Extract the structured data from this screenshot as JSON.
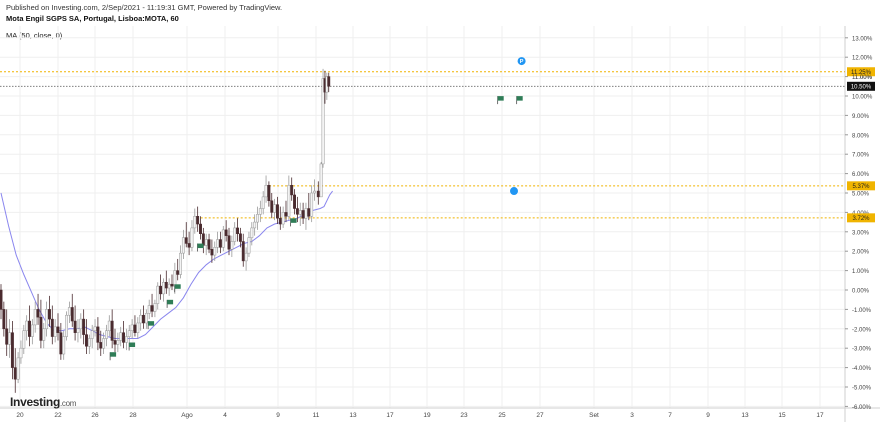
{
  "header": {
    "published": "Published on Investing.com, 2/Sep/2021 - 11:19:31 GMT, Powered by TradingView.",
    "title": "Mota Engil SGPS SA, Portugal, Lisboa:MOTA, 60",
    "indicator": "MA (50, close, 0)"
  },
  "logo": {
    "brand": "Investing",
    "suffix": ".com"
  },
  "colors": {
    "up": "#f3f3f3",
    "down": "#4a2b2f",
    "ma": "#8a86ee",
    "level": "#f0b400",
    "current": "#111111",
    "flag": "#2f7d57",
    "badge": "#2196f3",
    "grid": "#efefef"
  },
  "chart_data": {
    "type": "candlestick",
    "x_ticks": [
      "20",
      "22",
      "26",
      "28",
      "Ago",
      "4",
      "9",
      "11",
      "13",
      "17",
      "19",
      "23",
      "25",
      "27",
      "Set",
      "3",
      "7",
      "9",
      "13",
      "15",
      "17"
    ],
    "y_ticks": [
      "13.00%",
      "12.00%",
      "11.00%",
      "10.00%",
      "9.00%",
      "8.00%",
      "7.00%",
      "6.00%",
      "5.00%",
      "4.00%",
      "3.00%",
      "2.00%",
      "1.00%",
      "0.00%",
      "-1.00%",
      "-2.00%",
      "-3.00%",
      "-4.00%",
      "-5.00%",
      "-6.00%"
    ],
    "ylim": [
      -6,
      13
    ],
    "levels": [
      {
        "label": "11.25%",
        "value": 11.25,
        "style": "dotted"
      },
      {
        "label": "5.37%",
        "value": 5.37,
        "style": "dotted"
      },
      {
        "label": "3.72%",
        "value": 3.72,
        "style": "dotted"
      },
      {
        "label": "10.50%",
        "value": 10.5,
        "style": "current"
      }
    ],
    "partial_tick_label": "11.00%",
    "flag_days": [
      4.9,
      5.9,
      6.9,
      7.9,
      8.3,
      9.5,
      14.4,
      25.3,
      26.3
    ],
    "badges": [
      {
        "letter": "P",
        "day": 26.4,
        "value": 11.8
      },
      {
        "letter": "",
        "day": 26.0,
        "value": 5.1
      }
    ],
    "candles": [
      {
        "d": -1.0,
        "o": 0.0,
        "h": 0.3,
        "l": -1.5,
        "c": -1.0
      },
      {
        "d": -0.85,
        "o": -1.0,
        "h": -0.6,
        "l": -2.4,
        "c": -2.0
      },
      {
        "d": -0.7,
        "o": -2.0,
        "h": -1.0,
        "l": -3.4,
        "c": -2.8
      },
      {
        "d": -0.55,
        "o": -2.8,
        "h": -1.5,
        "l": -3.5,
        "c": -2.2
      },
      {
        "d": -0.4,
        "o": -2.2,
        "h": -1.6,
        "l": -4.6,
        "c": -4.0
      },
      {
        "d": -0.25,
        "o": -4.0,
        "h": -3.0,
        "l": -5.3,
        "c": -4.6
      },
      {
        "d": -0.1,
        "o": -4.6,
        "h": -3.2,
        "l": -4.8,
        "c": -3.5
      },
      {
        "d": 0.05,
        "o": -3.5,
        "h": -2.6,
        "l": -3.8,
        "c": -3.0
      },
      {
        "d": 0.2,
        "o": -3.0,
        "h": -1.8,
        "l": -3.3,
        "c": -2.1
      },
      {
        "d": 0.35,
        "o": -2.1,
        "h": -1.3,
        "l": -2.6,
        "c": -1.6
      },
      {
        "d": 0.5,
        "o": -1.6,
        "h": -0.8,
        "l": -2.9,
        "c": -2.4
      },
      {
        "d": 0.65,
        "o": -2.4,
        "h": -1.5,
        "l": -2.8,
        "c": -1.8
      },
      {
        "d": 0.8,
        "o": -1.8,
        "h": -0.6,
        "l": -2.2,
        "c": -1.0
      },
      {
        "d": 0.95,
        "o": -1.0,
        "h": -0.2,
        "l": -1.8,
        "c": -1.4
      },
      {
        "d": 1.1,
        "o": -1.4,
        "h": -0.5,
        "l": -3.0,
        "c": -2.6
      },
      {
        "d": 1.25,
        "o": -2.6,
        "h": -1.7,
        "l": -3.0,
        "c": -2.0
      },
      {
        "d": 1.4,
        "o": -2.0,
        "h": -0.6,
        "l": -2.4,
        "c": -1.0
      },
      {
        "d": 1.55,
        "o": -1.0,
        "h": -0.3,
        "l": -1.9,
        "c": -1.5
      },
      {
        "d": 1.7,
        "o": -1.5,
        "h": -0.8,
        "l": -2.8,
        "c": -2.4
      },
      {
        "d": 1.85,
        "o": -2.4,
        "h": -1.5,
        "l": -2.7,
        "c": -1.9
      },
      {
        "d": 2.0,
        "o": -1.9,
        "h": -1.2,
        "l": -2.6,
        "c": -2.2
      },
      {
        "d": 2.15,
        "o": -2.2,
        "h": -1.7,
        "l": -3.6,
        "c": -3.3
      },
      {
        "d": 2.3,
        "o": -3.3,
        "h": -2.1,
        "l": -3.6,
        "c": -2.4
      },
      {
        "d": 2.45,
        "o": -2.4,
        "h": -1.1,
        "l": -2.6,
        "c": -1.3
      },
      {
        "d": 2.6,
        "o": -1.3,
        "h": -0.6,
        "l": -1.7,
        "c": -0.9
      },
      {
        "d": 2.75,
        "o": -0.9,
        "h": -0.2,
        "l": -1.9,
        "c": -1.6
      },
      {
        "d": 2.9,
        "o": -1.6,
        "h": -0.8,
        "l": -2.6,
        "c": -2.2
      },
      {
        "d": 3.05,
        "o": -2.2,
        "h": -1.5,
        "l": -2.7,
        "c": -2.0
      },
      {
        "d": 3.2,
        "o": -2.0,
        "h": -1.2,
        "l": -2.5,
        "c": -1.5
      },
      {
        "d": 3.35,
        "o": -1.5,
        "h": -1.0,
        "l": -2.8,
        "c": -2.3
      },
      {
        "d": 3.5,
        "o": -2.3,
        "h": -1.5,
        "l": -3.3,
        "c": -2.9
      },
      {
        "d": 3.65,
        "o": -2.9,
        "h": -2.3,
        "l": -3.3,
        "c": -2.5
      },
      {
        "d": 3.8,
        "o": -2.5,
        "h": -1.8,
        "l": -3.0,
        "c": -2.1
      },
      {
        "d": 3.95,
        "o": -2.1,
        "h": -1.5,
        "l": -2.4,
        "c": -1.9
      },
      {
        "d": 4.1,
        "o": -1.9,
        "h": -1.4,
        "l": -3.1,
        "c": -2.7
      },
      {
        "d": 4.25,
        "o": -2.7,
        "h": -2.1,
        "l": -3.4,
        "c": -3.0
      },
      {
        "d": 4.4,
        "o": -3.0,
        "h": -2.2,
        "l": -3.3,
        "c": -2.5
      },
      {
        "d": 4.55,
        "o": -2.5,
        "h": -1.8,
        "l": -2.9,
        "c": -2.1
      },
      {
        "d": 4.7,
        "o": -2.1,
        "h": -1.3,
        "l": -2.4,
        "c": -1.6
      },
      {
        "d": 4.85,
        "o": -1.6,
        "h": -1.0,
        "l": -3.0,
        "c": -2.6
      },
      {
        "d": 5.0,
        "o": -2.6,
        "h": -2.0,
        "l": -3.2,
        "c": -2.8
      },
      {
        "d": 5.15,
        "o": -2.8,
        "h": -2.2,
        "l": -3.2,
        "c": -2.6
      },
      {
        "d": 5.3,
        "o": -2.6,
        "h": -1.9,
        "l": -2.9,
        "c": -2.2
      },
      {
        "d": 5.45,
        "o": -2.2,
        "h": -1.6,
        "l": -3.0,
        "c": -2.7
      },
      {
        "d": 5.6,
        "o": -2.7,
        "h": -2.0,
        "l": -3.1,
        "c": -2.4
      },
      {
        "d": 5.75,
        "o": -2.4,
        "h": -1.8,
        "l": -2.7,
        "c": -2.1
      },
      {
        "d": 5.9,
        "o": -2.1,
        "h": -1.5,
        "l": -2.5,
        "c": -1.8
      },
      {
        "d": 6.05,
        "o": -1.8,
        "h": -1.3,
        "l": -2.4,
        "c": -2.2
      },
      {
        "d": 6.2,
        "o": -2.2,
        "h": -1.4,
        "l": -2.5,
        "c": -1.7
      },
      {
        "d": 6.35,
        "o": -1.7,
        "h": -1.0,
        "l": -2.1,
        "c": -1.3
      },
      {
        "d": 6.5,
        "o": -1.3,
        "h": -0.8,
        "l": -2.0,
        "c": -1.7
      },
      {
        "d": 6.65,
        "o": -1.7,
        "h": -1.0,
        "l": -2.0,
        "c": -1.2
      },
      {
        "d": 6.8,
        "o": -1.2,
        "h": -0.5,
        "l": -1.5,
        "c": -0.8
      },
      {
        "d": 6.95,
        "o": -0.8,
        "h": -0.2,
        "l": -1.4,
        "c": -1.1
      },
      {
        "d": 7.1,
        "o": -1.1,
        "h": -0.5,
        "l": -1.4,
        "c": -0.7
      },
      {
        "d": 7.25,
        "o": -0.7,
        "h": 0.4,
        "l": -1.0,
        "c": 0.2
      },
      {
        "d": 7.4,
        "o": 0.2,
        "h": 0.8,
        "l": -0.5,
        "c": -0.2
      },
      {
        "d": 7.55,
        "o": -0.2,
        "h": 0.6,
        "l": -0.6,
        "c": 0.4
      },
      {
        "d": 7.7,
        "o": 0.4,
        "h": 1.0,
        "l": -0.2,
        "c": 0.1
      },
      {
        "d": 7.85,
        "o": 0.1,
        "h": 0.6,
        "l": -0.3,
        "c": 0.3
      },
      {
        "d": 8.0,
        "o": 0.3,
        "h": 0.8,
        "l": 0.0,
        "c": 0.2
      },
      {
        "d": 8.15,
        "o": 0.2,
        "h": 1.4,
        "l": -0.2,
        "c": 1.0
      },
      {
        "d": 8.3,
        "o": 1.0,
        "h": 1.6,
        "l": 0.5,
        "c": 0.8
      },
      {
        "d": 8.45,
        "o": 0.8,
        "h": 2.3,
        "l": 0.6,
        "c": 1.9
      },
      {
        "d": 8.6,
        "o": 1.9,
        "h": 3.1,
        "l": 1.6,
        "c": 2.7
      },
      {
        "d": 8.75,
        "o": 2.7,
        "h": 3.5,
        "l": 2.2,
        "c": 2.4
      },
      {
        "d": 8.9,
        "o": 2.4,
        "h": 3.0,
        "l": 1.8,
        "c": 2.2
      },
      {
        "d": 9.05,
        "o": 2.2,
        "h": 3.6,
        "l": 2.0,
        "c": 3.2
      },
      {
        "d": 9.2,
        "o": 3.2,
        "h": 4.2,
        "l": 2.9,
        "c": 3.8
      },
      {
        "d": 9.35,
        "o": 3.8,
        "h": 4.3,
        "l": 3.0,
        "c": 3.4
      },
      {
        "d": 9.5,
        "o": 3.4,
        "h": 3.8,
        "l": 2.6,
        "c": 2.9
      },
      {
        "d": 9.65,
        "o": 2.9,
        "h": 3.2,
        "l": 1.9,
        "c": 2.3
      },
      {
        "d": 9.8,
        "o": 2.3,
        "h": 2.9,
        "l": 1.8,
        "c": 2.6
      },
      {
        "d": 9.95,
        "o": 2.6,
        "h": 2.9,
        "l": 1.9,
        "c": 2.1
      },
      {
        "d": 10.1,
        "o": 2.1,
        "h": 2.6,
        "l": 1.4,
        "c": 1.8
      },
      {
        "d": 10.25,
        "o": 1.8,
        "h": 2.5,
        "l": 1.5,
        "c": 2.2
      },
      {
        "d": 10.4,
        "o": 2.2,
        "h": 3.0,
        "l": 1.9,
        "c": 2.6
      },
      {
        "d": 10.55,
        "o": 2.6,
        "h": 3.0,
        "l": 1.9,
        "c": 2.2
      },
      {
        "d": 10.7,
        "o": 2.2,
        "h": 3.3,
        "l": 2.0,
        "c": 3.1
      },
      {
        "d": 10.85,
        "o": 3.1,
        "h": 3.6,
        "l": 2.5,
        "c": 2.8
      },
      {
        "d": 11.0,
        "o": 2.8,
        "h": 3.2,
        "l": 1.8,
        "c": 2.1
      },
      {
        "d": 11.15,
        "o": 2.1,
        "h": 2.8,
        "l": 1.7,
        "c": 2.5
      },
      {
        "d": 11.3,
        "o": 2.5,
        "h": 3.5,
        "l": 2.3,
        "c": 3.2
      },
      {
        "d": 11.45,
        "o": 3.2,
        "h": 3.7,
        "l": 2.5,
        "c": 2.9
      },
      {
        "d": 11.6,
        "o": 2.9,
        "h": 3.2,
        "l": 2.2,
        "c": 2.5
      },
      {
        "d": 11.75,
        "o": 2.5,
        "h": 2.9,
        "l": 1.2,
        "c": 1.5
      },
      {
        "d": 11.9,
        "o": 1.5,
        "h": 2.2,
        "l": 1.0,
        "c": 1.9
      },
      {
        "d": 12.05,
        "o": 1.9,
        "h": 3.0,
        "l": 1.7,
        "c": 2.7
      },
      {
        "d": 12.2,
        "o": 2.7,
        "h": 3.5,
        "l": 2.3,
        "c": 3.2
      },
      {
        "d": 12.35,
        "o": 3.2,
        "h": 3.9,
        "l": 2.8,
        "c": 3.5
      },
      {
        "d": 12.5,
        "o": 3.5,
        "h": 4.3,
        "l": 3.1,
        "c": 3.9
      },
      {
        "d": 12.65,
        "o": 3.9,
        "h": 4.6,
        "l": 3.5,
        "c": 4.2
      },
      {
        "d": 12.8,
        "o": 4.2,
        "h": 5.1,
        "l": 3.9,
        "c": 4.8
      },
      {
        "d": 12.95,
        "o": 4.8,
        "h": 5.9,
        "l": 4.5,
        "c": 5.4
      },
      {
        "d": 13.1,
        "o": 5.4,
        "h": 5.6,
        "l": 4.3,
        "c": 4.6
      },
      {
        "d": 13.25,
        "o": 4.6,
        "h": 5.0,
        "l": 3.7,
        "c": 4.0
      },
      {
        "d": 13.4,
        "o": 4.0,
        "h": 4.7,
        "l": 3.6,
        "c": 4.4
      },
      {
        "d": 13.55,
        "o": 4.4,
        "h": 4.8,
        "l": 3.4,
        "c": 3.7
      },
      {
        "d": 13.7,
        "o": 3.7,
        "h": 4.3,
        "l": 3.1,
        "c": 3.4
      },
      {
        "d": 13.85,
        "o": 3.4,
        "h": 4.3,
        "l": 3.2,
        "c": 4.0
      },
      {
        "d": 14.0,
        "o": 4.0,
        "h": 4.6,
        "l": 3.5,
        "c": 3.8
      },
      {
        "d": 14.15,
        "o": 3.8,
        "h": 5.9,
        "l": 3.6,
        "c": 5.4
      },
      {
        "d": 14.3,
        "o": 5.4,
        "h": 5.8,
        "l": 4.6,
        "c": 4.9
      },
      {
        "d": 14.45,
        "o": 4.9,
        "h": 5.2,
        "l": 3.9,
        "c": 4.2
      },
      {
        "d": 14.6,
        "o": 4.2,
        "h": 4.8,
        "l": 3.5,
        "c": 3.9
      },
      {
        "d": 14.75,
        "o": 3.9,
        "h": 4.5,
        "l": 3.3,
        "c": 4.1
      },
      {
        "d": 14.9,
        "o": 4.1,
        "h": 4.5,
        "l": 3.4,
        "c": 3.7
      },
      {
        "d": 15.05,
        "o": 3.7,
        "h": 4.5,
        "l": 3.1,
        "c": 4.2
      },
      {
        "d": 15.2,
        "o": 4.2,
        "h": 5.0,
        "l": 3.6,
        "c": 3.8
      },
      {
        "d": 15.35,
        "o": 3.8,
        "h": 5.4,
        "l": 3.5,
        "c": 5.0
      },
      {
        "d": 15.5,
        "o": 5.0,
        "h": 5.7,
        "l": 4.6,
        "c": 5.1
      },
      {
        "d": 15.7,
        "o": 5.1,
        "h": 5.6,
        "l": 4.4,
        "c": 4.8
      },
      {
        "d": 15.85,
        "o": 4.8,
        "h": 6.6,
        "l": 4.8,
        "c": 6.5
      },
      {
        "d": 15.95,
        "o": 6.5,
        "h": 11.4,
        "l": 6.3,
        "c": 10.9
      },
      {
        "d": 16.05,
        "o": 10.9,
        "h": 11.3,
        "l": 9.6,
        "c": 10.2
      },
      {
        "d": 16.15,
        "o": 10.2,
        "h": 11.2,
        "l": 9.8,
        "c": 11.0
      },
      {
        "d": 16.25,
        "o": 11.0,
        "h": 11.2,
        "l": 10.2,
        "c": 10.5
      }
    ],
    "ma": [
      {
        "d": -1.0,
        "v": 5.0
      },
      {
        "d": -0.6,
        "v": 3.3
      },
      {
        "d": -0.2,
        "v": 1.8
      },
      {
        "d": 0.2,
        "v": 0.8
      },
      {
        "d": 0.6,
        "v": -0.1
      },
      {
        "d": 1.0,
        "v": -1.0
      },
      {
        "d": 1.4,
        "v": -1.7
      },
      {
        "d": 1.8,
        "v": -2.1
      },
      {
        "d": 2.2,
        "v": -2.1
      },
      {
        "d": 2.6,
        "v": -2.0
      },
      {
        "d": 3.0,
        "v": -2.0
      },
      {
        "d": 3.4,
        "v": -1.9
      },
      {
        "d": 3.8,
        "v": -2.1
      },
      {
        "d": 4.2,
        "v": -2.3
      },
      {
        "d": 4.6,
        "v": -2.4
      },
      {
        "d": 5.0,
        "v": -2.5
      },
      {
        "d": 5.4,
        "v": -2.5
      },
      {
        "d": 5.8,
        "v": -2.5
      },
      {
        "d": 6.2,
        "v": -2.5
      },
      {
        "d": 6.6,
        "v": -2.3
      },
      {
        "d": 7.0,
        "v": -1.9
      },
      {
        "d": 7.4,
        "v": -1.5
      },
      {
        "d": 7.8,
        "v": -1.2
      },
      {
        "d": 8.2,
        "v": -0.9
      },
      {
        "d": 8.6,
        "v": -0.4
      },
      {
        "d": 9.0,
        "v": 0.3
      },
      {
        "d": 9.4,
        "v": 0.9
      },
      {
        "d": 9.8,
        "v": 1.3
      },
      {
        "d": 10.2,
        "v": 1.6
      },
      {
        "d": 10.6,
        "v": 1.8
      },
      {
        "d": 11.0,
        "v": 2.0
      },
      {
        "d": 11.4,
        "v": 2.2
      },
      {
        "d": 11.8,
        "v": 2.4
      },
      {
        "d": 12.2,
        "v": 2.5
      },
      {
        "d": 12.6,
        "v": 2.8
      },
      {
        "d": 13.0,
        "v": 3.2
      },
      {
        "d": 13.4,
        "v": 3.4
      },
      {
        "d": 13.8,
        "v": 3.5
      },
      {
        "d": 14.2,
        "v": 3.6
      },
      {
        "d": 14.6,
        "v": 3.7
      },
      {
        "d": 15.0,
        "v": 3.9
      },
      {
        "d": 15.4,
        "v": 4.1
      },
      {
        "d": 15.8,
        "v": 4.2
      },
      {
        "d": 16.0,
        "v": 4.3
      },
      {
        "d": 16.3,
        "v": 4.9
      },
      {
        "d": 16.45,
        "v": 5.1
      }
    ]
  }
}
